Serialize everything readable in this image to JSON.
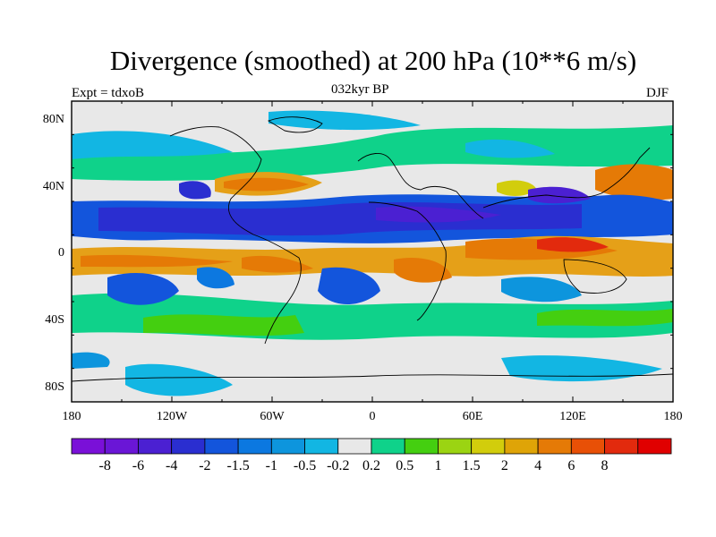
{
  "title": "Divergence (smoothed) at 200 hPa (10**6 m/s)",
  "left_label": "Expt = tdxoB",
  "center_label": "032kyr BP",
  "right_label": "DJF",
  "lat_ticks": [
    "80N",
    "40N",
    "0",
    "40S",
    "80S"
  ],
  "lon_ticks": [
    "180",
    "120W",
    "60W",
    "0",
    "60E",
    "120E",
    "180"
  ],
  "colorbar": {
    "colors": [
      "#7a10d8",
      "#6a16d6",
      "#4b20d2",
      "#2a2ed0",
      "#1355dc",
      "#0c78e0",
      "#0d95dd",
      "#12b6e3",
      "#e8e8e8",
      "#0fd28a",
      "#44cf10",
      "#9bd412",
      "#d2cd0c",
      "#dfa407",
      "#e57a06",
      "#e85006",
      "#e22a0d",
      "#e00000"
    ],
    "labels": [
      "-8",
      "-6",
      "-4",
      "-2",
      "-1.5",
      "-1",
      "-0.5",
      "-0.2",
      "0.2",
      "0.5",
      "1",
      "1.5",
      "2",
      "4",
      "6",
      "8"
    ]
  }
}
